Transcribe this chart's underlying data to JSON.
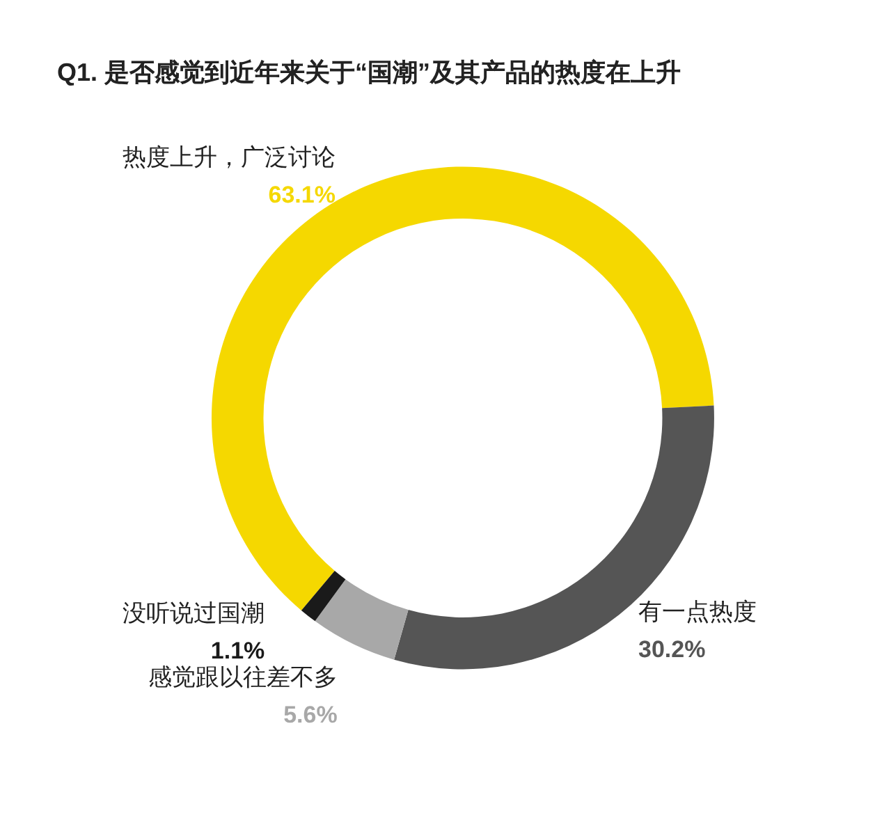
{
  "chart_data": {
    "type": "donut",
    "title": "Q1. 是否感觉到近年来关于“国潮”及其产品的热度在上升",
    "categories": [
      "热度上升，广泛讨论",
      "有一点热度",
      "感觉跟以往差不多",
      "没听说过国潮"
    ],
    "values": [
      63.1,
      30.2,
      5.6,
      1.1
    ],
    "colors": [
      "#f5d800",
      "#555555",
      "#a8a8a8",
      "#1a1a1a"
    ],
    "value_labels": [
      "63.1%",
      "30.2%",
      "5.6%",
      "1.1%"
    ],
    "legend": false
  }
}
